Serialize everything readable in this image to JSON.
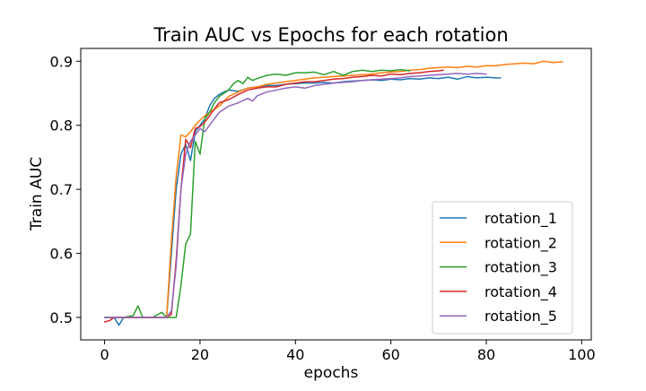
{
  "chart_data": {
    "type": "line",
    "title": "Train AUC vs Epochs for each rotation",
    "xlabel": "epochs",
    "ylabel": "Train AUC",
    "xlim": [
      -5,
      102
    ],
    "ylim": [
      0.465,
      0.92
    ],
    "x_ticks": [
      0,
      20,
      40,
      60,
      80,
      100
    ],
    "y_ticks": [
      0.5,
      0.6,
      0.7,
      0.8,
      0.9
    ],
    "x_tick_labels": [
      "0",
      "20",
      "40",
      "60",
      "80",
      "100"
    ],
    "y_tick_labels": [
      "0.5",
      "0.6",
      "0.7",
      "0.8",
      "0.9"
    ],
    "grid": false,
    "legend_position": "lower-right",
    "series": [
      {
        "name": "rotation_1",
        "color": "#1f77b4",
        "points": [
          [
            0,
            0.5
          ],
          [
            1,
            0.5
          ],
          [
            2,
            0.5
          ],
          [
            3,
            0.488
          ],
          [
            4,
            0.5
          ],
          [
            5,
            0.5
          ],
          [
            6,
            0.5
          ],
          [
            7,
            0.5
          ],
          [
            8,
            0.5
          ],
          [
            9,
            0.5
          ],
          [
            10,
            0.5
          ],
          [
            11,
            0.5
          ],
          [
            12,
            0.5
          ],
          [
            13,
            0.5
          ],
          [
            14,
            0.6
          ],
          [
            15,
            0.7
          ],
          [
            16,
            0.755
          ],
          [
            17,
            0.77
          ],
          [
            18,
            0.745
          ],
          [
            19,
            0.79
          ],
          [
            20,
            0.8
          ],
          [
            21,
            0.81
          ],
          [
            22,
            0.83
          ],
          [
            23,
            0.842
          ],
          [
            24,
            0.848
          ],
          [
            25,
            0.852
          ],
          [
            26,
            0.855
          ],
          [
            28,
            0.853
          ],
          [
            30,
            0.858
          ],
          [
            32,
            0.86
          ],
          [
            34,
            0.862
          ],
          [
            36,
            0.862
          ],
          [
            38,
            0.864
          ],
          [
            40,
            0.865
          ],
          [
            42,
            0.866
          ],
          [
            44,
            0.866
          ],
          [
            46,
            0.867
          ],
          [
            48,
            0.866
          ],
          [
            50,
            0.868
          ],
          [
            52,
            0.869
          ],
          [
            54,
            0.87
          ],
          [
            56,
            0.871
          ],
          [
            58,
            0.87
          ],
          [
            60,
            0.872
          ],
          [
            62,
            0.871
          ],
          [
            64,
            0.873
          ],
          [
            66,
            0.872
          ],
          [
            68,
            0.874
          ],
          [
            70,
            0.873
          ],
          [
            72,
            0.875
          ],
          [
            74,
            0.872
          ],
          [
            76,
            0.876
          ],
          [
            78,
            0.874
          ],
          [
            80,
            0.875
          ],
          [
            82,
            0.874
          ],
          [
            83,
            0.874
          ]
        ]
      },
      {
        "name": "rotation_2",
        "color": "#ff7f0e",
        "points": [
          [
            0,
            0.5
          ],
          [
            2,
            0.5
          ],
          [
            4,
            0.5
          ],
          [
            6,
            0.5
          ],
          [
            8,
            0.5
          ],
          [
            10,
            0.5
          ],
          [
            12,
            0.5
          ],
          [
            13,
            0.5
          ],
          [
            14,
            0.62
          ],
          [
            15,
            0.72
          ],
          [
            16,
            0.785
          ],
          [
            17,
            0.782
          ],
          [
            18,
            0.79
          ],
          [
            19,
            0.8
          ],
          [
            20,
            0.808
          ],
          [
            21,
            0.815
          ],
          [
            22,
            0.82
          ],
          [
            23,
            0.825
          ],
          [
            24,
            0.83
          ],
          [
            26,
            0.845
          ],
          [
            28,
            0.852
          ],
          [
            30,
            0.858
          ],
          [
            32,
            0.86
          ],
          [
            34,
            0.864
          ],
          [
            36,
            0.866
          ],
          [
            38,
            0.868
          ],
          [
            40,
            0.87
          ],
          [
            42,
            0.872
          ],
          [
            44,
            0.874
          ],
          [
            46,
            0.875
          ],
          [
            48,
            0.876
          ],
          [
            50,
            0.877
          ],
          [
            52,
            0.878
          ],
          [
            54,
            0.879
          ],
          [
            56,
            0.88
          ],
          [
            58,
            0.882
          ],
          [
            60,
            0.883
          ],
          [
            62,
            0.884
          ],
          [
            64,
            0.886
          ],
          [
            66,
            0.887
          ],
          [
            68,
            0.889
          ],
          [
            70,
            0.89
          ],
          [
            72,
            0.891
          ],
          [
            74,
            0.89
          ],
          [
            76,
            0.892
          ],
          [
            78,
            0.891
          ],
          [
            80,
            0.893
          ],
          [
            82,
            0.893
          ],
          [
            84,
            0.895
          ],
          [
            86,
            0.896
          ],
          [
            88,
            0.897
          ],
          [
            90,
            0.896
          ],
          [
            92,
            0.9
          ],
          [
            94,
            0.898
          ],
          [
            96,
            0.899
          ]
        ]
      },
      {
        "name": "rotation_3",
        "color": "#2ca02c",
        "points": [
          [
            0,
            0.5
          ],
          [
            2,
            0.5
          ],
          [
            4,
            0.5
          ],
          [
            6,
            0.503
          ],
          [
            7,
            0.518
          ],
          [
            8,
            0.5
          ],
          [
            10,
            0.5
          ],
          [
            12,
            0.508
          ],
          [
            13,
            0.5
          ],
          [
            14,
            0.5
          ],
          [
            15,
            0.5
          ],
          [
            16,
            0.55
          ],
          [
            17,
            0.615
          ],
          [
            18,
            0.63
          ],
          [
            19,
            0.775
          ],
          [
            20,
            0.755
          ],
          [
            21,
            0.81
          ],
          [
            22,
            0.82
          ],
          [
            23,
            0.835
          ],
          [
            24,
            0.845
          ],
          [
            25,
            0.85
          ],
          [
            26,
            0.855
          ],
          [
            27,
            0.865
          ],
          [
            28,
            0.87
          ],
          [
            29,
            0.865
          ],
          [
            30,
            0.875
          ],
          [
            31,
            0.87
          ],
          [
            32,
            0.873
          ],
          [
            34,
            0.878
          ],
          [
            36,
            0.88
          ],
          [
            38,
            0.878
          ],
          [
            40,
            0.882
          ],
          [
            42,
            0.882
          ],
          [
            44,
            0.883
          ],
          [
            46,
            0.879
          ],
          [
            48,
            0.884
          ],
          [
            50,
            0.878
          ],
          [
            52,
            0.884
          ],
          [
            54,
            0.886
          ],
          [
            56,
            0.884
          ],
          [
            58,
            0.886
          ],
          [
            60,
            0.885
          ],
          [
            62,
            0.887
          ],
          [
            64,
            0.885
          ]
        ]
      },
      {
        "name": "rotation_4",
        "color": "#d62728",
        "points": [
          [
            0,
            0.493
          ],
          [
            1,
            0.495
          ],
          [
            2,
            0.5
          ],
          [
            4,
            0.5
          ],
          [
            6,
            0.5
          ],
          [
            8,
            0.5
          ],
          [
            10,
            0.5
          ],
          [
            12,
            0.5
          ],
          [
            13,
            0.5
          ],
          [
            14,
            0.505
          ],
          [
            15,
            0.59
          ],
          [
            16,
            0.7
          ],
          [
            17,
            0.778
          ],
          [
            18,
            0.765
          ],
          [
            19,
            0.795
          ],
          [
            20,
            0.798
          ],
          [
            21,
            0.805
          ],
          [
            22,
            0.815
          ],
          [
            23,
            0.825
          ],
          [
            24,
            0.835
          ],
          [
            26,
            0.84
          ],
          [
            28,
            0.848
          ],
          [
            30,
            0.855
          ],
          [
            32,
            0.858
          ],
          [
            34,
            0.86
          ],
          [
            36,
            0.86
          ],
          [
            38,
            0.864
          ],
          [
            40,
            0.866
          ],
          [
            42,
            0.868
          ],
          [
            44,
            0.868
          ],
          [
            46,
            0.87
          ],
          [
            48,
            0.872
          ],
          [
            50,
            0.873
          ],
          [
            52,
            0.875
          ],
          [
            54,
            0.876
          ],
          [
            56,
            0.878
          ],
          [
            58,
            0.877
          ],
          [
            60,
            0.88
          ],
          [
            62,
            0.879
          ],
          [
            64,
            0.881
          ],
          [
            66,
            0.882
          ],
          [
            68,
            0.884
          ],
          [
            70,
            0.885
          ],
          [
            71,
            0.886
          ]
        ]
      },
      {
        "name": "rotation_5",
        "color": "#9467bd",
        "points": [
          [
            0,
            0.5
          ],
          [
            2,
            0.5
          ],
          [
            4,
            0.5
          ],
          [
            6,
            0.5
          ],
          [
            8,
            0.5
          ],
          [
            10,
            0.5
          ],
          [
            12,
            0.5
          ],
          [
            13,
            0.5
          ],
          [
            14,
            0.51
          ],
          [
            15,
            0.58
          ],
          [
            16,
            0.7
          ],
          [
            17,
            0.755
          ],
          [
            18,
            0.775
          ],
          [
            19,
            0.785
          ],
          [
            20,
            0.795
          ],
          [
            21,
            0.79
          ],
          [
            22,
            0.8
          ],
          [
            23,
            0.81
          ],
          [
            24,
            0.82
          ],
          [
            26,
            0.83
          ],
          [
            28,
            0.835
          ],
          [
            30,
            0.842
          ],
          [
            31,
            0.838
          ],
          [
            32,
            0.846
          ],
          [
            34,
            0.852
          ],
          [
            36,
            0.855
          ],
          [
            38,
            0.858
          ],
          [
            40,
            0.86
          ],
          [
            42,
            0.858
          ],
          [
            44,
            0.862
          ],
          [
            46,
            0.864
          ],
          [
            48,
            0.866
          ],
          [
            50,
            0.867
          ],
          [
            52,
            0.868
          ],
          [
            54,
            0.87
          ],
          [
            56,
            0.871
          ],
          [
            58,
            0.872
          ],
          [
            60,
            0.873
          ],
          [
            62,
            0.874
          ],
          [
            64,
            0.876
          ],
          [
            66,
            0.877
          ],
          [
            68,
            0.878
          ],
          [
            70,
            0.879
          ],
          [
            72,
            0.88
          ],
          [
            74,
            0.881
          ],
          [
            76,
            0.88
          ],
          [
            78,
            0.881
          ],
          [
            80,
            0.88
          ]
        ]
      }
    ]
  }
}
